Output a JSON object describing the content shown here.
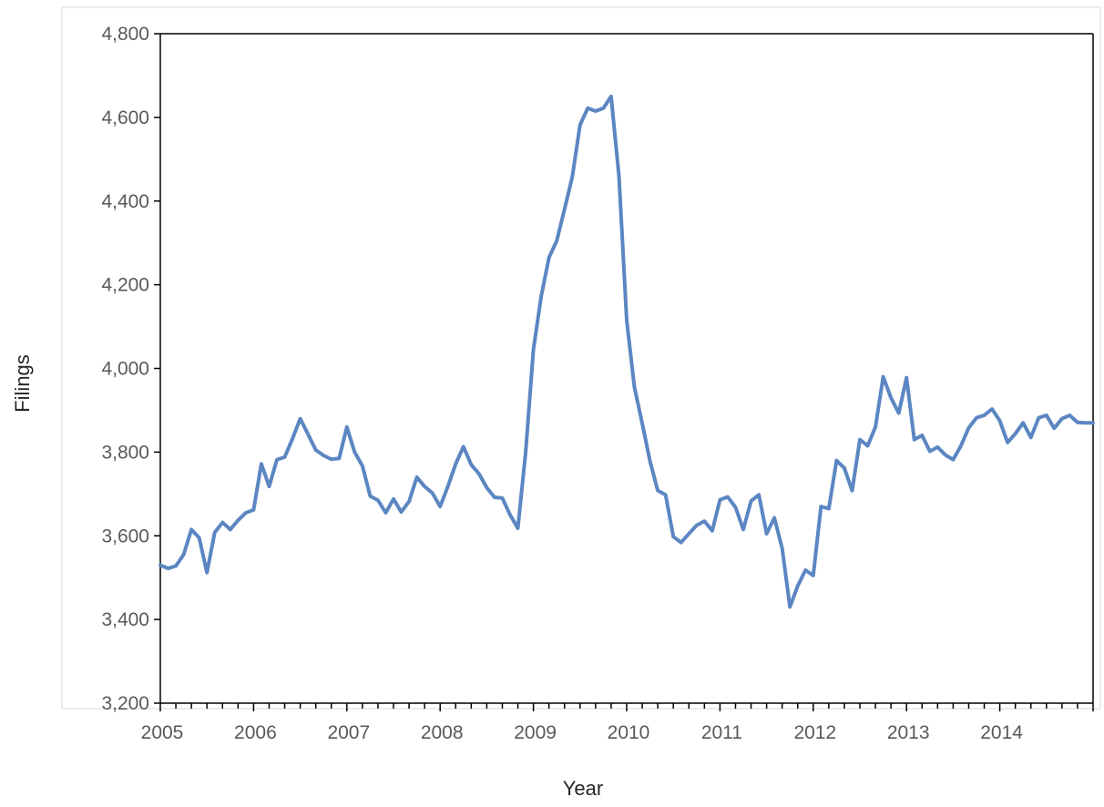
{
  "chart_data": {
    "type": "line",
    "title": "",
    "xlabel": "Year",
    "ylabel": "Filings",
    "xlim": [
      2005.0,
      2015.0
    ],
    "ylim": [
      3200,
      4800
    ],
    "y_ticks": [
      3200,
      3400,
      3600,
      3800,
      4000,
      4200,
      4400,
      4600,
      4800
    ],
    "y_tick_labels": [
      "3,200",
      "3,400",
      "3,600",
      "3,800",
      "4,000",
      "4,200",
      "4,400",
      "4,600",
      "4,800"
    ],
    "x_ticks": [
      2005,
      2006,
      2007,
      2008,
      2009,
      2010,
      2011,
      2012,
      2013,
      2014
    ],
    "x_tick_labels": [
      "2005",
      "2006",
      "2007",
      "2008",
      "2009",
      "2010",
      "2011",
      "2012",
      "2013",
      "2014"
    ],
    "grid": false,
    "legend": "none",
    "colors": {
      "line": "#5B86C2",
      "axis": "#000000",
      "border": "#D9D9D9"
    },
    "series": [
      {
        "x": [
          2005.0,
          2005.083,
          2005.167,
          2005.25,
          2005.333,
          2005.417,
          2005.5,
          2005.583,
          2005.667,
          2005.75,
          2005.833,
          2005.917,
          2006.0,
          2006.083,
          2006.167,
          2006.25,
          2006.333,
          2006.417,
          2006.5,
          2006.583,
          2006.667,
          2006.75,
          2006.833,
          2006.917,
          2007.0,
          2007.083,
          2007.167,
          2007.25,
          2007.333,
          2007.417,
          2007.5,
          2007.583,
          2007.667,
          2007.75,
          2007.833,
          2007.917,
          2008.0,
          2008.083,
          2008.167,
          2008.25,
          2008.333,
          2008.417,
          2008.5,
          2008.583,
          2008.667,
          2008.75,
          2008.833,
          2008.917,
          2009.0,
          2009.083,
          2009.167,
          2009.25,
          2009.333,
          2009.417,
          2009.5,
          2009.583,
          2009.667,
          2009.75,
          2009.833,
          2009.917,
          2010.0,
          2010.083,
          2010.167,
          2010.25,
          2010.333,
          2010.417,
          2010.5,
          2010.583,
          2010.667,
          2010.75,
          2010.833,
          2010.917,
          2011.0,
          2011.083,
          2011.167,
          2011.25,
          2011.333,
          2011.417,
          2011.5,
          2011.583,
          2011.667,
          2011.75,
          2011.833,
          2011.917,
          2012.0,
          2012.083,
          2012.167,
          2012.25,
          2012.333,
          2012.417,
          2012.5,
          2012.583,
          2012.667,
          2012.75,
          2012.833,
          2012.917,
          2013.0,
          2013.083,
          2013.167,
          2013.25,
          2013.333,
          2013.417,
          2013.5,
          2013.583,
          2013.667,
          2013.75,
          2013.833,
          2013.917,
          2014.0,
          2014.083,
          2014.167,
          2014.25,
          2014.333,
          2014.417,
          2014.5,
          2014.583,
          2014.667,
          2014.75,
          2014.833,
          2014.917,
          2015.0
        ],
        "values": [
          3530,
          3522,
          3528,
          3555,
          3615,
          3595,
          3512,
          3608,
          3632,
          3615,
          3637,
          3655,
          3662,
          3772,
          3718,
          3782,
          3788,
          3832,
          3880,
          3843,
          3805,
          3792,
          3783,
          3785,
          3860,
          3800,
          3767,
          3695,
          3685,
          3655,
          3688,
          3657,
          3682,
          3740,
          3718,
          3702,
          3670,
          3718,
          3772,
          3813,
          3770,
          3748,
          3715,
          3692,
          3690,
          3650,
          3618,
          3800,
          4045,
          4172,
          4265,
          4305,
          4380,
          4458,
          4582,
          4622,
          4615,
          4622,
          4650,
          4460,
          4115,
          3955,
          3868,
          3778,
          3708,
          3698,
          3598,
          3584,
          3605,
          3625,
          3635,
          3612,
          3686,
          3693,
          3668,
          3615,
          3683,
          3698,
          3605,
          3643,
          3570,
          3430,
          3480,
          3518,
          3505,
          3670,
          3665,
          3780,
          3762,
          3708,
          3830,
          3815,
          3860,
          3980,
          3930,
          3893,
          3978,
          3830,
          3840,
          3802,
          3812,
          3793,
          3782,
          3815,
          3858,
          3882,
          3888,
          3903,
          3875,
          3823,
          3844,
          3870,
          3835,
          3882,
          3888,
          3857,
          3880,
          3888,
          3871,
          3870,
          3870
        ]
      }
    ]
  }
}
